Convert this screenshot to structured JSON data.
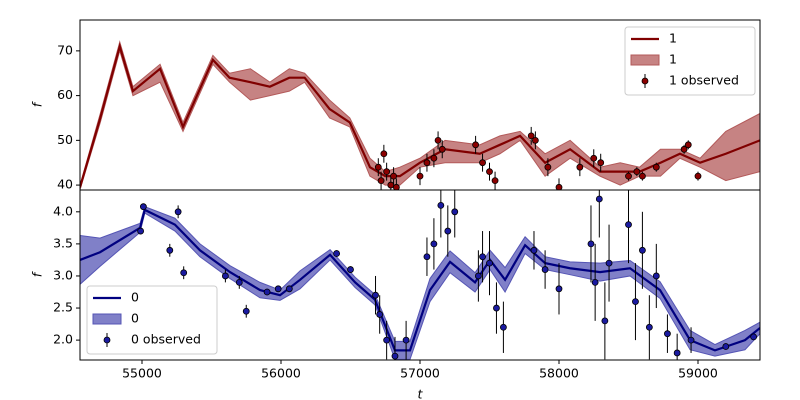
{
  "chart_data": [
    {
      "type": "line",
      "y_label": "f",
      "legend": "upper right",
      "xlim": [
        54554,
        59446
      ],
      "ylim": [
        38.9,
        76.9
      ],
      "yticks": [
        40,
        50,
        60,
        70
      ],
      "x": [
        54554,
        54700,
        54840,
        54935,
        55130,
        55295,
        55510,
        55630,
        55780,
        55920,
        56060,
        56170,
        56350,
        56495,
        56640,
        56750,
        56855,
        57000,
        57180,
        57430,
        57575,
        57720,
        57900,
        58080,
        58295,
        58440,
        58580,
        58730,
        58870,
        59015,
        59200,
        59446
      ],
      "series": [
        {
          "name": "1",
          "type": "line",
          "color": "#800000",
          "values": [
            39.5,
            55,
            71,
            61,
            66,
            53,
            68,
            64,
            63,
            62,
            64,
            64,
            57,
            54,
            44,
            42,
            42,
            45,
            48,
            47,
            49,
            51,
            45,
            48,
            43,
            43,
            43,
            45,
            47,
            45,
            47,
            50
          ]
        },
        {
          "name": "1",
          "type": "band",
          "color": "#b35a5a",
          "lower": [
            39,
            54,
            70,
            60,
            63,
            52,
            67,
            63,
            59,
            60,
            61,
            63,
            55,
            53,
            42,
            40,
            40,
            44,
            45,
            45,
            47,
            50,
            42,
            46,
            42,
            40,
            42,
            42,
            46,
            44,
            41,
            43
          ],
          "upper": [
            40,
            56,
            72,
            62,
            67,
            54,
            69,
            65,
            66,
            63,
            66,
            65,
            59,
            55,
            46,
            43,
            44,
            46,
            50,
            49,
            51,
            52,
            47,
            50,
            44,
            45,
            44,
            48,
            48,
            46,
            52,
            56
          ]
        },
        {
          "name": "1 observed",
          "type": "errorbar",
          "color": "#8b0000",
          "x": [
            56700,
            56720,
            56740,
            56760,
            56790,
            56810,
            56830,
            57000,
            57050,
            57100,
            57130,
            57160,
            57400,
            57450,
            57500,
            57540,
            57800,
            57830,
            57920,
            58000,
            58150,
            58250,
            58300,
            58500,
            58560,
            58600,
            58700,
            58900,
            58930,
            59000
          ],
          "values": [
            44,
            41,
            47,
            43,
            40,
            42,
            39.5,
            42,
            45,
            46,
            50,
            48,
            49,
            45,
            43,
            41,
            51,
            50,
            44,
            39.5,
            44,
            46,
            45,
            42,
            43,
            42,
            44,
            48,
            49,
            42
          ],
          "errors": [
            2,
            2,
            2,
            2,
            2,
            2,
            2,
            2,
            2,
            2,
            2,
            2,
            2,
            2,
            2,
            2,
            2,
            2,
            2,
            2,
            2,
            2,
            2,
            1,
            1,
            1,
            1,
            1,
            1,
            1
          ]
        }
      ]
    },
    {
      "type": "line",
      "y_label": "f",
      "x_label": "t",
      "legend": "lower left",
      "xlim": [
        54554,
        59446
      ],
      "ylim": [
        1.69,
        4.34
      ],
      "xticks": [
        55000,
        56000,
        57000,
        58000,
        59000
      ],
      "yticks": [
        {
          "value": 2,
          "label": "2.0"
        },
        {
          "value": 2.5,
          "label": "2.5"
        },
        {
          "value": 3,
          "label": "3.0"
        },
        {
          "value": 3.5,
          "label": "3.5"
        },
        {
          "value": 4,
          "label": "4.0"
        }
      ],
      "x": [
        54554,
        54698,
        54986,
        55020,
        55237,
        55417,
        55633,
        55849,
        55993,
        56137,
        56353,
        56533,
        56676,
        56820,
        56928,
        57072,
        57216,
        57396,
        57504,
        57612,
        57756,
        57900,
        58079,
        58295,
        58511,
        58727,
        58943,
        59122,
        59338,
        59446
      ],
      "series": [
        {
          "name": "0",
          "type": "line",
          "color": "#000080",
          "values": [
            3.25,
            3.37,
            3.75,
            4.03,
            3.8,
            3.4,
            3.06,
            2.78,
            2.7,
            2.94,
            3.33,
            2.9,
            2.63,
            1.84,
            1.84,
            2.78,
            3.22,
            2.9,
            3.25,
            2.94,
            3.48,
            3.2,
            3.12,
            3.06,
            3.12,
            2.78,
            2.0,
            1.84,
            2.0,
            2.19
          ]
        },
        {
          "name": "0",
          "type": "band",
          "color": "#5555b5",
          "lower": [
            2.87,
            3.15,
            3.68,
            3.98,
            3.7,
            3.3,
            2.96,
            2.66,
            2.62,
            2.8,
            3.25,
            2.82,
            2.55,
            1.7,
            1.7,
            2.6,
            3.05,
            2.75,
            3.1,
            2.75,
            3.35,
            3.1,
            3.02,
            2.92,
            3.0,
            2.65,
            1.85,
            1.75,
            1.85,
            2.1
          ],
          "upper": [
            3.63,
            3.59,
            3.82,
            4.08,
            3.9,
            3.5,
            3.16,
            2.9,
            2.78,
            3.08,
            3.41,
            2.98,
            2.71,
            1.98,
            1.98,
            2.96,
            3.39,
            3.05,
            3.4,
            3.13,
            3.61,
            3.3,
            3.22,
            3.2,
            3.24,
            2.91,
            2.15,
            1.93,
            2.15,
            2.28
          ]
        },
        {
          "name": "0 observed",
          "type": "errorbar",
          "color": "#1a1aa0",
          "x": [
            54990,
            55010,
            55200,
            55260,
            55300,
            55600,
            55700,
            55750,
            55900,
            55980,
            56060,
            56400,
            56500,
            56680,
            56710,
            56760,
            56820,
            56900,
            57050,
            57100,
            57150,
            57200,
            57250,
            57420,
            57450,
            57500,
            57550,
            57600,
            57820,
            57900,
            58000,
            58230,
            58260,
            58290,
            58330,
            58360,
            58500,
            58550,
            58600,
            58650,
            58700,
            58780,
            58850,
            58950,
            59200,
            59400
          ],
          "values": [
            3.7,
            4.08,
            3.4,
            4.0,
            3.05,
            3.0,
            2.9,
            2.45,
            2.75,
            2.8,
            2.8,
            3.35,
            3.1,
            2.7,
            2.4,
            2.0,
            1.75,
            2.0,
            3.3,
            3.5,
            4.1,
            3.7,
            4.0,
            3.0,
            3.3,
            3.2,
            2.5,
            2.2,
            3.4,
            3.1,
            2.8,
            3.5,
            2.9,
            4.2,
            2.3,
            3.2,
            3.8,
            2.6,
            3.4,
            2.2,
            3.0,
            2.1,
            1.8,
            2.0,
            1.9,
            2.05
          ],
          "errors": [
            0.05,
            0.05,
            0.1,
            0.1,
            0.1,
            0.1,
            0.1,
            0.1,
            0.05,
            0.05,
            0.05,
            0.05,
            0.05,
            0.3,
            0.3,
            0.3,
            0.3,
            0.3,
            0.3,
            0.4,
            0.5,
            0.4,
            0.4,
            0.4,
            0.4,
            0.5,
            0.4,
            0.4,
            0.3,
            0.3,
            0.4,
            0.6,
            0.6,
            0.6,
            0.6,
            0.6,
            0.6,
            0.6,
            0.6,
            0.5,
            0.5,
            0.3,
            0.3,
            0.2,
            0.05,
            0.05
          ]
        }
      ]
    }
  ]
}
